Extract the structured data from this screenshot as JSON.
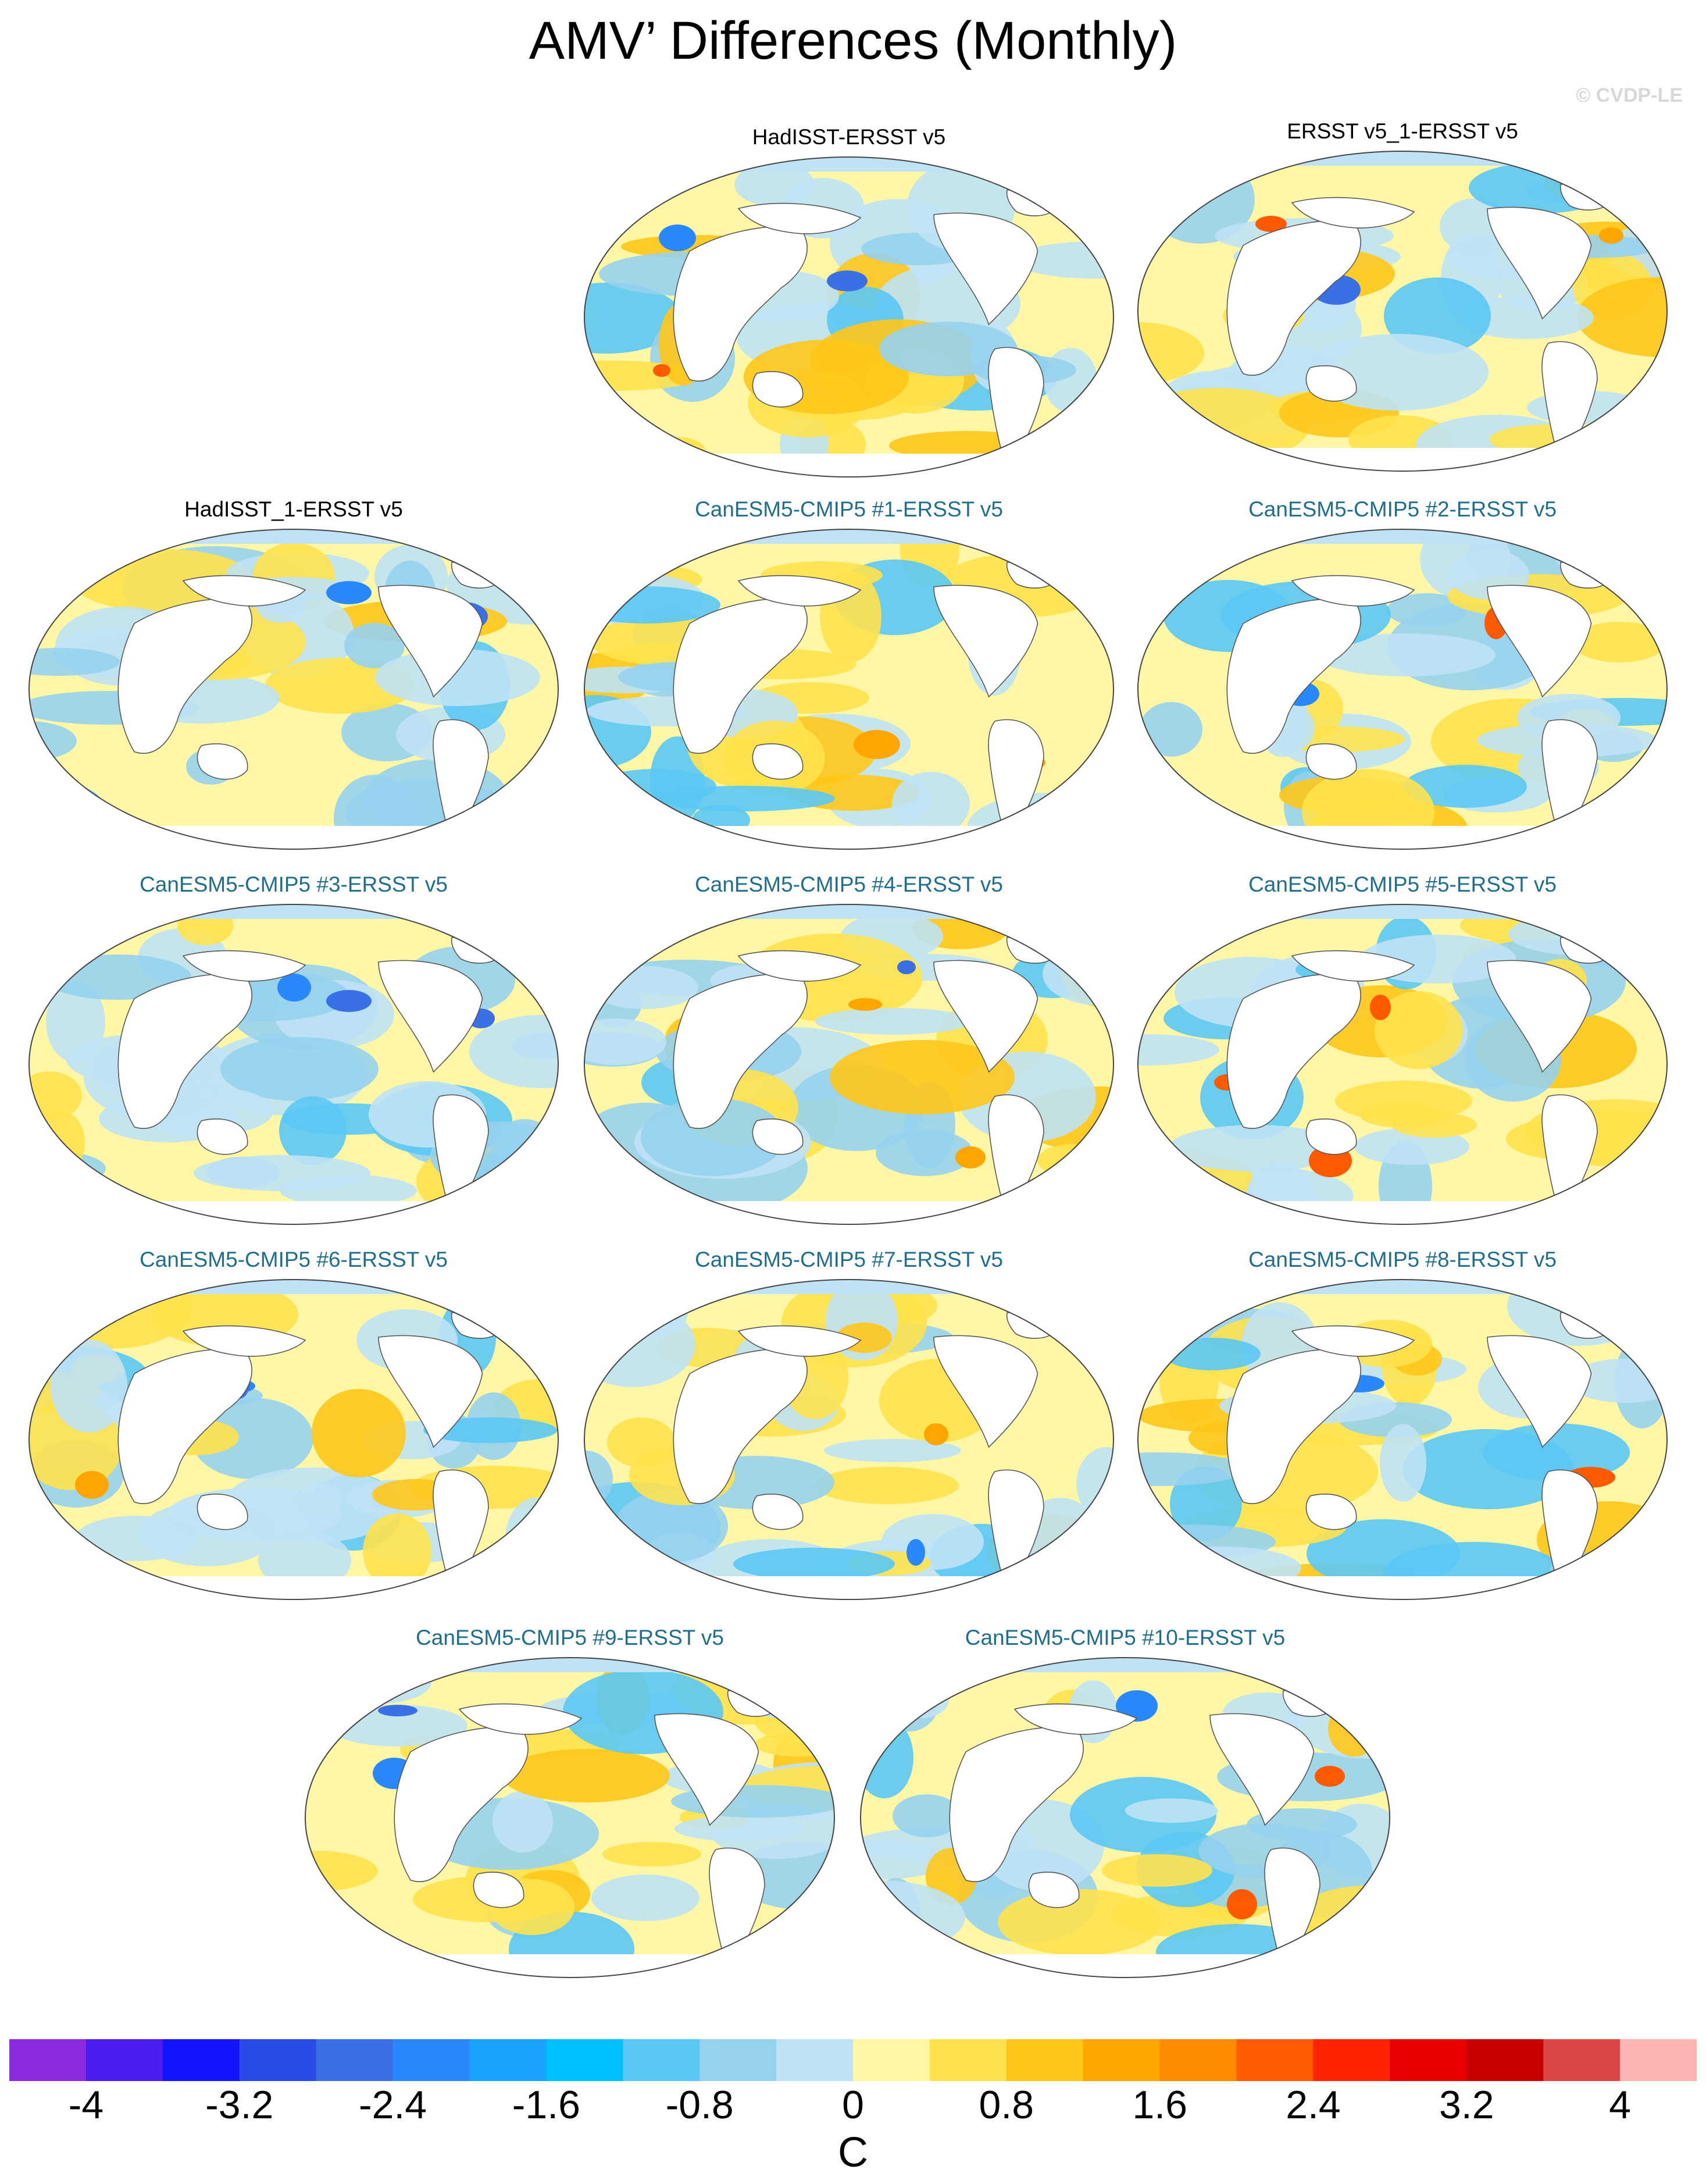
{
  "title": "AMV’ Differences (Monthly)",
  "credit": "© CVDP-LE",
  "panels": [
    {
      "label": "HadISST-ERSST v5",
      "kind": "obs"
    },
    {
      "label": "ERSST v5_1-ERSST v5",
      "kind": "obs"
    },
    {
      "label": "HadISST_1-ERSST v5",
      "kind": "obs"
    },
    {
      "label": "CanESM5-CMIP5 #1-ERSST v5",
      "kind": "model"
    },
    {
      "label": "CanESM5-CMIP5 #2-ERSST v5",
      "kind": "model"
    },
    {
      "label": "CanESM5-CMIP5 #3-ERSST v5",
      "kind": "model"
    },
    {
      "label": "CanESM5-CMIP5 #4-ERSST v5",
      "kind": "model"
    },
    {
      "label": "CanESM5-CMIP5 #5-ERSST v5",
      "kind": "model"
    },
    {
      "label": "CanESM5-CMIP5 #6-ERSST v5",
      "kind": "model"
    },
    {
      "label": "CanESM5-CMIP5 #7-ERSST v5",
      "kind": "model"
    },
    {
      "label": "CanESM5-CMIP5 #8-ERSST v5",
      "kind": "model"
    },
    {
      "label": "CanESM5-CMIP5 #9-ERSST v5",
      "kind": "model"
    },
    {
      "label": "CanESM5-CMIP5 #10-ERSST v5",
      "kind": "model"
    }
  ],
  "colorbar": {
    "colors": [
      "#8a2be2",
      "#4b1df0",
      "#1414ff",
      "#2b4be6",
      "#3a70e6",
      "#2a88ff",
      "#1aa2ff",
      "#00bfff",
      "#5ac8f5",
      "#96d2ee",
      "#bfe2f5",
      "#fff7a6",
      "#ffe24d",
      "#ffc61a",
      "#ffa500",
      "#ff8c00",
      "#ff5a00",
      "#ff2400",
      "#e80000",
      "#c80000",
      "#dc4646",
      "#ffb4b4"
    ],
    "tick_labels": [
      "-4",
      "-3.2",
      "-2.4",
      "-1.6",
      "-0.8",
      "0",
      "0.8",
      "1.6",
      "2.4",
      "3.2",
      "4"
    ],
    "units": "C"
  }
}
